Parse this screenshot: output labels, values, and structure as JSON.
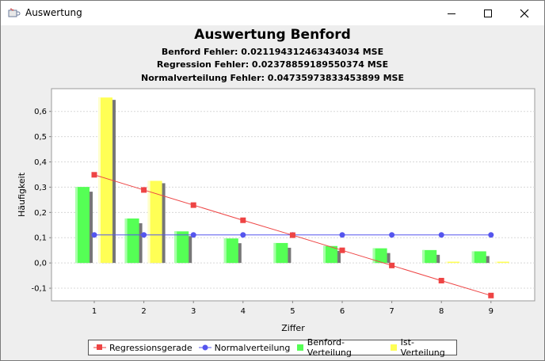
{
  "window": {
    "title": "Auswertung",
    "icon": "java-cup-icon",
    "buttons": [
      "minimize-icon",
      "maximize-icon",
      "close-icon"
    ]
  },
  "titles": {
    "main": "Auswertung Benford",
    "benford_error": "Benford Fehler: 0.021194312463434034 MSE",
    "regression_error": "Regression Fehler: 0.02378859189550374 MSE",
    "normal_error": "Normalverteilung Fehler: 0.04735973833453899 MSE"
  },
  "legend": {
    "regression": "Regressionsgerade",
    "normal": "Normalverteilung",
    "benford": "Benford-Verteilung",
    "ist": "Ist-Verteilung"
  },
  "colors": {
    "regression": "#ee4444",
    "normal": "#5555ee",
    "benford": "#55ff55",
    "ist": "#ffff55",
    "shadow": "#777777"
  },
  "chart_data": {
    "type": "bar",
    "xlabel": "Ziffer",
    "ylabel": "Häufigkeit",
    "ylim": [
      -0.15,
      0.69
    ],
    "yticks": [
      "-0,1",
      "0,0",
      "0,1",
      "0,2",
      "0,3",
      "0,4",
      "0,5",
      "0,6"
    ],
    "ytick_values": [
      -0.1,
      0.0,
      0.1,
      0.2,
      0.3,
      0.4,
      0.5,
      0.6
    ],
    "categories": [
      "1",
      "2",
      "3",
      "4",
      "5",
      "6",
      "7",
      "8",
      "9"
    ],
    "grid": true,
    "legend_position": "bottom",
    "series": [
      {
        "name": "Benford-Verteilung",
        "kind": "bar",
        "values": [
          0.301,
          0.176,
          0.125,
          0.097,
          0.079,
          0.067,
          0.058,
          0.051,
          0.046
        ]
      },
      {
        "name": "Ist-Verteilung",
        "kind": "bar",
        "values": [
          0.655,
          0.325,
          0.0,
          0.0,
          0.0,
          0.0,
          0.0,
          0.005,
          0.005
        ]
      },
      {
        "name": "Regressionsgerade",
        "kind": "line",
        "values": [
          0.349,
          0.289,
          0.229,
          0.169,
          0.11,
          0.05,
          -0.01,
          -0.07,
          -0.129
        ]
      },
      {
        "name": "Normalverteilung",
        "kind": "line",
        "values": [
          0.111,
          0.111,
          0.111,
          0.111,
          0.111,
          0.111,
          0.111,
          0.111,
          0.111
        ]
      }
    ]
  }
}
